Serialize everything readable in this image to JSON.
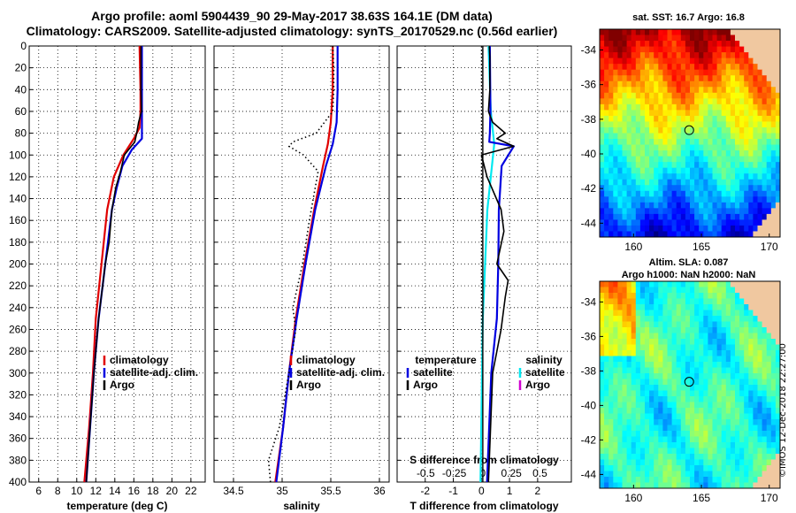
{
  "title_line1": "Argo profile: aoml 5904439_90 29-May-2017 38.63S 164.1E (DM data)",
  "title_line2": "Climatology: CARS2009. Satellite-adjusted climatology: synTS_20170529.nc (0.56d earlier)",
  "map_top_title": "sat. SST: 16.7 Argo: 16.8",
  "map_bottom_title1": "Altim. SLA: 0.087",
  "map_bottom_title2": "Argo h1000: NaN h2000: NaN",
  "stamp": "©IMOS 12-Dec-2018 22:27:00",
  "colors": {
    "climatology": "#e00000",
    "satellite": "#0000e0",
    "argo": "#000000",
    "s_satellite": "#00e8f0",
    "s_argo": "#d000d0"
  },
  "chart_data": [
    {
      "type": "line",
      "xlabel": "temperature (deg C)",
      "ylabel": "",
      "xlim": [
        5,
        23.5
      ],
      "ylim": [
        400,
        0
      ],
      "xticks": [
        "6",
        "8",
        "10",
        "12",
        "14",
        "16",
        "18",
        "20",
        "22"
      ],
      "yticks": [
        "0",
        "20",
        "40",
        "60",
        "80",
        "100",
        "120",
        "140",
        "160",
        "180",
        "200",
        "220",
        "240",
        "260",
        "280",
        "300",
        "320",
        "340",
        "360",
        "380",
        "400"
      ],
      "legend": [
        "climatology",
        "satellite-adj. clim.",
        "Argo"
      ],
      "series": [
        {
          "name": "climatology",
          "depth": [
            0,
            20,
            40,
            60,
            75,
            85,
            100,
            120,
            150,
            200,
            250,
            300,
            350,
            400
          ],
          "values": [
            16.6,
            16.65,
            16.7,
            16.7,
            16.6,
            16.0,
            14.9,
            13.9,
            13.2,
            12.6,
            12.0,
            11.7,
            11.3,
            10.8
          ]
        },
        {
          "name": "satellite-adj. clim.",
          "depth": [
            0,
            20,
            40,
            60,
            75,
            85,
            95,
            110,
            130,
            150,
            200,
            250,
            300,
            350,
            400
          ],
          "values": [
            16.85,
            16.85,
            16.85,
            16.85,
            16.85,
            16.85,
            15.8,
            14.8,
            14.2,
            13.7,
            13.0,
            12.3,
            11.8,
            11.4,
            11.0
          ]
        },
        {
          "name": "Argo",
          "depth": [
            0,
            20,
            40,
            60,
            70,
            80,
            88,
            100,
            115,
            130,
            150,
            180,
            200,
            250,
            300,
            350,
            400
          ],
          "values": [
            16.75,
            16.75,
            16.75,
            16.8,
            16.5,
            16.3,
            16.1,
            15.0,
            14.6,
            14.1,
            13.7,
            13.4,
            13.0,
            12.3,
            11.8,
            11.4,
            11.0
          ]
        }
      ]
    },
    {
      "type": "line",
      "xlabel": "salinity",
      "xlim": [
        34.3,
        36.1
      ],
      "ylim": [
        400,
        0
      ],
      "xticks": [
        "34.5",
        "35",
        "35.5",
        "36"
      ],
      "legend": [
        "climatology",
        "satellite-adj. clim.",
        "Argo"
      ],
      "series": [
        {
          "name": "climatology",
          "depth": [
            0,
            40,
            70,
            90,
            110,
            150,
            200,
            250,
            300,
            350,
            400
          ],
          "values": [
            35.52,
            35.52,
            35.5,
            35.47,
            35.42,
            35.33,
            35.23,
            35.14,
            35.07,
            35.01,
            34.93
          ]
        },
        {
          "name": "satellite-adj. clim.",
          "depth": [
            0,
            40,
            70,
            90,
            110,
            150,
            200,
            250,
            300,
            350,
            400
          ],
          "values": [
            35.57,
            35.57,
            35.56,
            35.52,
            35.45,
            35.34,
            35.24,
            35.15,
            35.07,
            35.01,
            34.94
          ]
        },
        {
          "name": "Argo",
          "depth": [
            0,
            20,
            40,
            60,
            80,
            88,
            92,
            100,
            115,
            130,
            160,
            200,
            240,
            260,
            300,
            350,
            380,
            400
          ],
          "values": [
            35.52,
            35.53,
            35.53,
            35.52,
            35.35,
            35.11,
            35.07,
            35.22,
            35.37,
            35.34,
            35.28,
            35.21,
            35.11,
            35.14,
            35.07,
            34.97,
            34.86,
            34.88
          ]
        }
      ]
    },
    {
      "type": "line",
      "xlabel": "T difference from climatology",
      "xlabel2": "S difference from climatology",
      "xlim": [
        -3,
        3.2
      ],
      "ylim": [
        400,
        0
      ],
      "xticks": [
        "-2",
        "-1",
        "0",
        "1",
        "2"
      ],
      "xticks2": [
        "-0.5",
        "-0.25",
        "0",
        "0.25",
        "0.5"
      ],
      "legend_temperature_title": "temperature",
      "legend_salinity_title": "salinity",
      "legend": [
        "satellite",
        "Argo"
      ],
      "series": [
        {
          "name": "T satellite",
          "depth": [
            0,
            60,
            80,
            88,
            92,
            110,
            150,
            200,
            250,
            300,
            400
          ],
          "values": [
            0.3,
            0.32,
            0.3,
            0.28,
            1.15,
            0.72,
            0.62,
            0.6,
            0.55,
            0.35,
            0.2
          ]
        },
        {
          "name": "T Argo",
          "depth": [
            0,
            10,
            40,
            60,
            70,
            80,
            85,
            92,
            100,
            120,
            150,
            170,
            200,
            215,
            230,
            260,
            300,
            400
          ],
          "values": [
            0.28,
            0.3,
            0.3,
            0.25,
            0.4,
            0.85,
            0.55,
            1.15,
            0.0,
            0.2,
            0.7,
            0.8,
            0.55,
            0.95,
            0.85,
            0.7,
            0.4,
            0.25
          ]
        },
        {
          "name": "S satellite",
          "depth": [
            0,
            60,
            90,
            150,
            250,
            400
          ],
          "values": [
            0.05,
            0.07,
            0.1,
            0.04,
            0.0,
            -0.02
          ]
        },
        {
          "name": "S Argo",
          "depth": [
            0,
            400
          ],
          "values": [
            0.0,
            0.0
          ]
        }
      ]
    },
    {
      "type": "heatmap",
      "title": "sat. SST: 16.7 Argo: 16.8",
      "xlim": [
        157.5,
        170.8
      ],
      "ylim": [
        -44.8,
        -32.8
      ],
      "xticks": [
        "160",
        "165",
        "170"
      ],
      "yticks": [
        "-34",
        "-36",
        "-38",
        "-40",
        "-42",
        "-44"
      ],
      "marker": {
        "lon": 164.1,
        "lat": -38.63
      }
    },
    {
      "type": "heatmap",
      "title": "Altim. SLA: 0.087",
      "xlim": [
        157.5,
        170.8
      ],
      "ylim": [
        -44.8,
        -32.8
      ],
      "xticks": [
        "160",
        "165",
        "170"
      ],
      "yticks": [
        "-34",
        "-36",
        "-38",
        "-40",
        "-42",
        "-44"
      ],
      "marker": {
        "lon": 164.1,
        "lat": -38.63
      }
    }
  ]
}
